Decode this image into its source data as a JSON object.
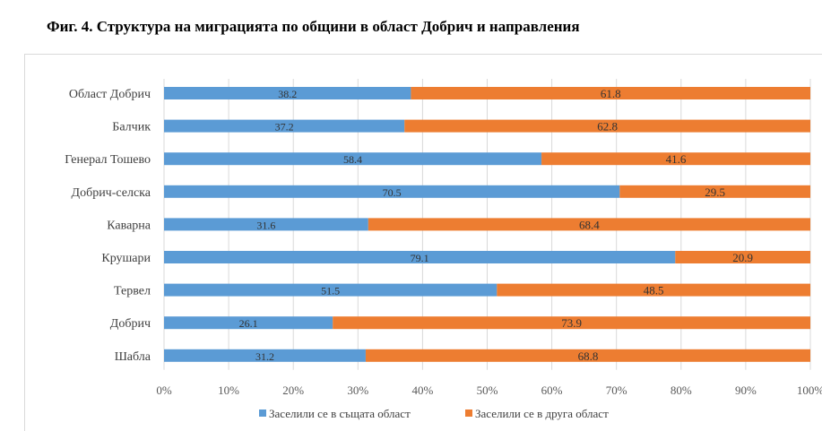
{
  "figure": {
    "title": "Фиг.  4. Структура на миграцията по общини в област Добрич и направления"
  },
  "chart_data": {
    "type": "bar",
    "orientation": "horizontal",
    "stacked": "percent",
    "categories": [
      "Област Добрич",
      "Балчик",
      "Генерал Тошево",
      "Добрич-селска",
      "Каварна",
      "Крушари",
      "Тервел",
      "Добрич",
      "Шабла"
    ],
    "series": [
      {
        "name": "Заселили се в същата област",
        "color": "#5b9bd5",
        "values": [
          38.2,
          37.2,
          58.4,
          70.5,
          31.6,
          79.1,
          51.5,
          26.1,
          31.2
        ],
        "labels": [
          "38.2",
          "37.2",
          "58.4",
          "70.5",
          "31.6",
          "79.1",
          "51.5",
          "26.1",
          "31.2"
        ]
      },
      {
        "name": "Заселили се в друга област",
        "color": "#ed7d31",
        "values": [
          61.8,
          62.8,
          41.6,
          29.5,
          68.4,
          20.9,
          48.5,
          73.9,
          68.8
        ],
        "labels": [
          "61.8",
          "62.8",
          "41.6",
          "29.5",
          "68.4",
          "20.9",
          "48.5",
          "73.9",
          "68.8"
        ]
      }
    ],
    "x_ticks": [
      "0%",
      "10%",
      "20%",
      "30%",
      "40%",
      "50%",
      "60%",
      "70%",
      "80%",
      "90%",
      "100%"
    ],
    "xlim": [
      0,
      100
    ],
    "grid": true,
    "legend_position": "bottom"
  }
}
